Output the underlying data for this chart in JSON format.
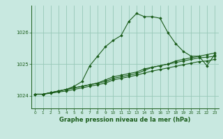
{
  "bg_color": "#c8e8e0",
  "grid_color": "#98c8b8",
  "line_color": "#1a5c1a",
  "marker_color": "#1a5c1a",
  "xlabel": "Graphe pression niveau de la mer (hPa)",
  "ylim": [
    1023.6,
    1026.85
  ],
  "xlim": [
    -0.5,
    23.5
  ],
  "yticks": [
    1024,
    1025,
    1026
  ],
  "xticks": [
    0,
    1,
    2,
    3,
    4,
    5,
    6,
    7,
    8,
    9,
    10,
    11,
    12,
    13,
    14,
    15,
    16,
    17,
    18,
    19,
    20,
    21,
    22,
    23
  ],
  "series": [
    [
      1024.05,
      1024.05,
      1024.1,
      1024.15,
      1024.2,
      1024.3,
      1024.45,
      1024.95,
      1025.25,
      1025.55,
      1025.75,
      1025.9,
      1026.35,
      1026.6,
      1026.5,
      1026.5,
      1026.45,
      1026.0,
      1025.65,
      1025.4,
      1025.25,
      1025.25,
      1024.95,
      1025.3
    ],
    [
      1024.05,
      1024.05,
      1024.1,
      1024.15,
      1024.2,
      1024.25,
      1024.3,
      1024.35,
      1024.4,
      1024.45,
      1024.55,
      1024.6,
      1024.65,
      1024.7,
      1024.8,
      1024.9,
      1024.95,
      1025.0,
      1025.1,
      1025.15,
      1025.2,
      1025.25,
      1025.3,
      1025.35
    ],
    [
      1024.05,
      1024.05,
      1024.1,
      1024.15,
      1024.2,
      1024.25,
      1024.3,
      1024.35,
      1024.4,
      1024.5,
      1024.6,
      1024.65,
      1024.7,
      1024.75,
      1024.85,
      1024.9,
      1024.95,
      1025.0,
      1025.05,
      1025.1,
      1025.15,
      1025.2,
      1025.22,
      1025.25
    ],
    [
      1024.05,
      1024.05,
      1024.08,
      1024.12,
      1024.15,
      1024.2,
      1024.25,
      1024.3,
      1024.35,
      1024.4,
      1024.5,
      1024.55,
      1024.6,
      1024.65,
      1024.72,
      1024.78,
      1024.83,
      1024.88,
      1024.93,
      1024.98,
      1025.03,
      1025.08,
      1025.1,
      1025.15
    ]
  ]
}
